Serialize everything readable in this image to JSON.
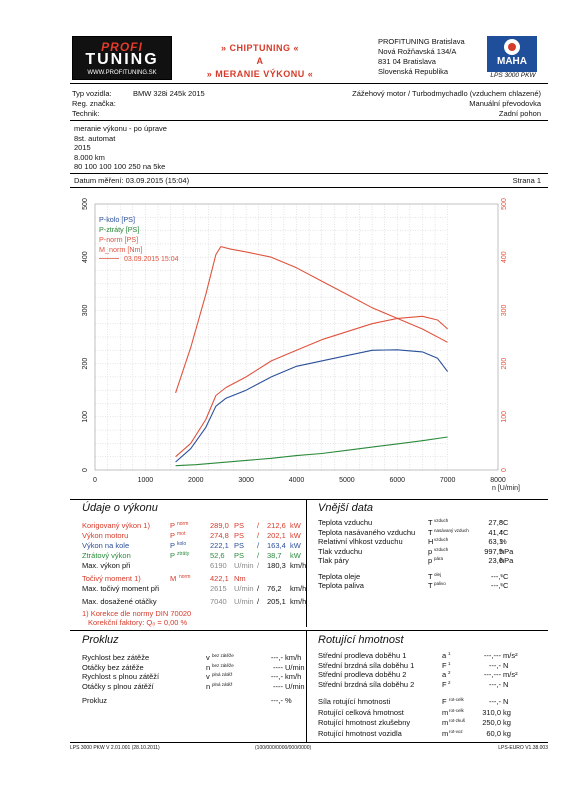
{
  "header": {
    "logo_top": "PROFI",
    "logo_main": "TUNING",
    "logo_url": "WWW.PROFITUNING.SK",
    "title_line1": "» CHIPTUNING «",
    "title_line2": "A",
    "title_line3": "» MERANIE VÝKONU «",
    "address": [
      "PROFITUNING Bratislava",
      "Nová Rožňavská 134/A",
      "831 04 Bratislava",
      "Slovenská Republika"
    ],
    "brand": "MAHA",
    "device": "LPS 3000 PKW"
  },
  "vehicle": {
    "type_label": "Typ vozidla:",
    "type_value": "BMW 328i 245k 2015",
    "reg_label": "Reg. značka:",
    "tech_label": "Technik:",
    "load_type": "Zážehový motor / Turbodmychadlo (vzduchem chlazené)",
    "gearbox": "Manuální převodovka",
    "drive": "Zadní pohon"
  },
  "notes": [
    "meranie výkonu - po úprave",
    "8st. automat",
    "2015",
    "8.000 km",
    "80 100 100 100 250 na 5ke"
  ],
  "meta": {
    "date_label": "Datum měření: 03.09.2015 (15:04)",
    "page_label": "Strana 1"
  },
  "chart_data": {
    "type": "line",
    "xlabel": "n [U/min]",
    "xlim": [
      0,
      8000
    ],
    "x_ticks": [
      "0",
      "1000",
      "2000",
      "3000",
      "4000",
      "5000",
      "6000",
      "7000",
      "8000"
    ],
    "ylim_left": [
      0,
      500
    ],
    "ylim_right": [
      0,
      500
    ],
    "y_ticks": [
      "0",
      "100",
      "200",
      "300",
      "400",
      "500"
    ],
    "grid": true,
    "legend_position": "top-left",
    "legend_date": "03.09.2015 15:04",
    "series": [
      {
        "name": "P-kolo [PS]",
        "color": "#2a4f9a",
        "axis": "left",
        "x": [
          1600,
          1900,
          2200,
          2400,
          2600,
          3000,
          3500,
          4000,
          4500,
          5000,
          5500,
          6000,
          6500,
          6800,
          7000
        ],
        "y": [
          15,
          40,
          80,
          120,
          135,
          150,
          175,
          195,
          205,
          215,
          225,
          226,
          222,
          210,
          185
        ]
      },
      {
        "name": "P-ztráty [PS]",
        "color": "#2a8a3a",
        "axis": "left",
        "x": [
          1600,
          2000,
          2500,
          3000,
          3500,
          4000,
          4500,
          5000,
          5500,
          6000,
          6500,
          7000
        ],
        "y": [
          8,
          10,
          14,
          18,
          22,
          27,
          31,
          37,
          43,
          49,
          55,
          62
        ]
      },
      {
        "name": "P-norm [PS]",
        "color": "#e0533e",
        "axis": "left",
        "x": [
          1600,
          1900,
          2200,
          2400,
          2600,
          3000,
          3500,
          4000,
          4500,
          5000,
          5500,
          6000,
          6500,
          6800,
          7000
        ],
        "y": [
          25,
          50,
          95,
          140,
          155,
          175,
          205,
          225,
          245,
          260,
          275,
          285,
          289,
          282,
          265
        ]
      },
      {
        "name": "M_norm [Nm]",
        "color": "#e0533e",
        "axis": "right",
        "x": [
          1600,
          1900,
          2200,
          2400,
          2500,
          2700,
          3000,
          3500,
          4000,
          4500,
          5000,
          5500,
          6000,
          6500,
          7000
        ],
        "y": [
          145,
          230,
          330,
          405,
          420,
          415,
          410,
          400,
          380,
          355,
          330,
          305,
          285,
          265,
          240
        ]
      }
    ]
  },
  "performance": {
    "title": "Údaje o výkonu",
    "rows": [
      {
        "label": "Korigovaný výkon",
        "mark": "1)",
        "sym": "P",
        "sub": "norm",
        "v1": "289,0",
        "u1": "PS",
        "sep": "/",
        "v2": "212,6",
        "u2": "kW"
      },
      {
        "label": "Výkon motoru",
        "mark": "",
        "sym": "P",
        "sub": "mot",
        "v1": "274,8",
        "u1": "PS",
        "sep": "/",
        "v2": "202,1",
        "u2": "kW"
      },
      {
        "label": "Výkon na kole",
        "mark": "",
        "sym": "P",
        "sub": "kolo",
        "v1": "222,1",
        "u1": "PS",
        "sep": "/",
        "v2": "163,4",
        "u2": "kW"
      },
      {
        "label": "Ztrátový výkon",
        "mark": "",
        "sym": "P",
        "sub": "ztráty",
        "v1": "52,6",
        "u1": "PS",
        "sep": "/",
        "v2": "38,7",
        "u2": "kW"
      },
      {
        "label": "Max. výkon při",
        "mark": "",
        "sym": "",
        "sub": "",
        "v1": "6190",
        "u1": "U/min",
        "sep": "/",
        "v2": "180,3",
        "u2": "km/h"
      }
    ],
    "torque": {
      "label": "Točivý moment",
      "mark": "1)",
      "sym": "M",
      "sub": "norm",
      "v1": "422,1",
      "u1": "Nm"
    },
    "torque_at": {
      "label": "Max. točivý moment při",
      "v1": "2615",
      "u1": "U/min",
      "sep": "/",
      "v2": "76,2",
      "u2": "km/h"
    },
    "max_rpm": {
      "label": "Max. dosažené otáčky",
      "v1": "7040",
      "u1": "U/min",
      "sep": "/",
      "v2": "205,1",
      "u2": "km/h"
    },
    "norm_note": "1) Korekce dle normy DIN 70020",
    "norm_factor": "Korekční faktory: Q₀ =   0,00 %"
  },
  "ambient": {
    "title": "Vnější data",
    "rows": [
      {
        "label": "Teplota vzduchu",
        "sym": "T",
        "sub": "vzduch",
        "val": "27,8",
        "unit": "°C"
      },
      {
        "label": "Teplota nasávaného vzduchu",
        "sym": "T",
        "sub": "nasávaný vzduch",
        "val": "41,4",
        "unit": "°C"
      },
      {
        "label": "Relativní vlhkost vzduchu",
        "sym": "H",
        "sub": "vzduch",
        "val": "63,1",
        "unit": "%"
      },
      {
        "label": "Tlak vzduchu",
        "sym": "p",
        "sub": "vzduch",
        "val": "997,5",
        "unit": "hPa"
      },
      {
        "label": "Tlak páry",
        "sym": "p",
        "sub": "pára",
        "val": "23,6",
        "unit": "hPa"
      },
      {
        "label": "Teplota oleje",
        "sym": "T",
        "sub": "olej",
        "val": "---,-",
        "unit": "°C"
      },
      {
        "label": "Teplota paliva",
        "sym": "T",
        "sub": "palivo",
        "val": "---,-",
        "unit": "°C"
      }
    ]
  },
  "slip": {
    "title": "Prokluz",
    "rows": [
      {
        "label": "Rychlost bez zátěže",
        "sym": "v",
        "sub": "bez zátěže",
        "val": "---,-",
        "unit": "km/h"
      },
      {
        "label": "Otáčky bez zátěže",
        "sym": "n",
        "sub": "bez zátěže",
        "val": "----",
        "unit": "U/min"
      },
      {
        "label": "Rychlost s plnou zátěží",
        "sym": "v",
        "sub": "plná zátěž",
        "val": "---,-",
        "unit": "km/h"
      },
      {
        "label": "Otáčky s plnou zátěží",
        "sym": "n",
        "sub": "plná zátěž",
        "val": "----",
        "unit": "U/min"
      }
    ],
    "total_label": "Prokluz",
    "total_val": "---,-",
    "total_unit": "%"
  },
  "rot": {
    "title": "Rotující hmotnost",
    "rows": [
      {
        "label": "Střední prodleva doběhu 1",
        "sym": "a",
        "sub": "1",
        "val": "---,---",
        "unit": "m/s²"
      },
      {
        "label": "Střední brzdná síla doběhu 1",
        "sym": "F",
        "sub": "1",
        "val": "---,-",
        "unit": "N"
      },
      {
        "label": "Střední prodleva doběhu 2",
        "sym": "a",
        "sub": "2",
        "val": "---,---",
        "unit": "m/s²"
      },
      {
        "label": "Střední brzdná síla doběhu 2",
        "sym": "F",
        "sub": "2",
        "val": "---,-",
        "unit": "N"
      }
    ],
    "rows2": [
      {
        "label": "Síla rotující hmotnosti",
        "sym": "F",
        "sub": "rot-celk",
        "val": "---,-",
        "unit": "N"
      },
      {
        "label": "Rotující celková hmotnost",
        "sym": "m",
        "sub": "rot-celk",
        "val": "310,0",
        "unit": "kg"
      },
      {
        "label": "Rotující hmotnost zkušebny",
        "sym": "m",
        "sub": "rot-zkuš",
        "val": "250,0",
        "unit": "kg"
      },
      {
        "label": "Rotující hmotnost vozidla",
        "sym": "m",
        "sub": "rot-voz",
        "val": "60,0",
        "unit": "kg"
      }
    ]
  },
  "footer": {
    "left": "LPS 3000 PKW V 2.01.001 (28.10.2011)",
    "center": "(100/000/0000/000/0000)",
    "right": "LPS-EURO V1.38.003"
  }
}
